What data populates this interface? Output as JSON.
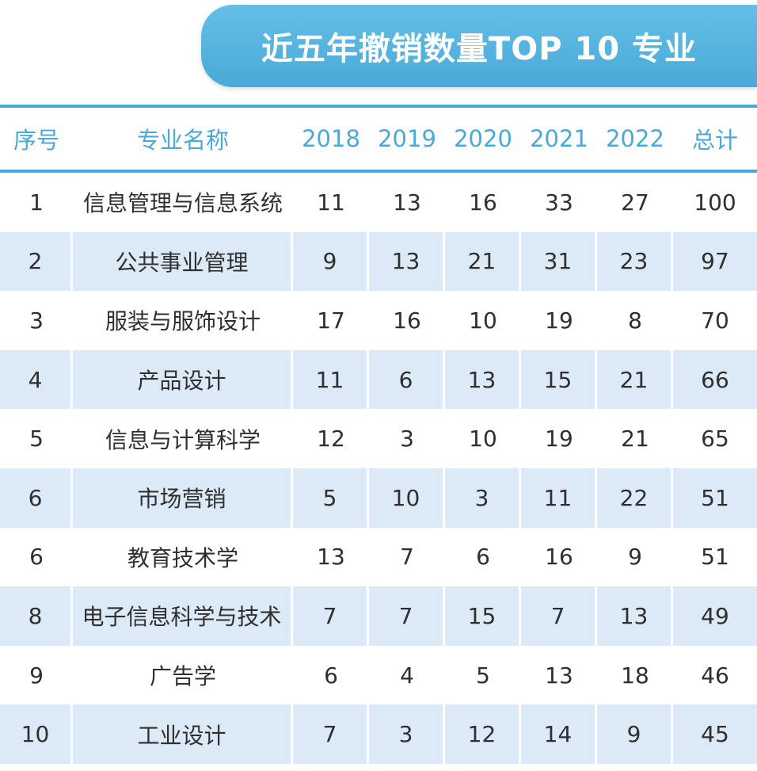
{
  "title": "近五年撤销数量TOP 10 专业",
  "colors": {
    "banner": "#4aa9d8",
    "header_text": "#4aa9d8",
    "row_shade": "#dce9f6"
  },
  "chart_data": {
    "type": "table",
    "title": "近五年撤销数量TOP 10 专业",
    "columns": [
      "序号",
      "专业名称",
      "2018",
      "2019",
      "2020",
      "2021",
      "2022",
      "总计"
    ],
    "rows": [
      [
        "1",
        "信息管理与信息系统",
        "11",
        "13",
        "16",
        "33",
        "27",
        "100"
      ],
      [
        "2",
        "公共事业管理",
        "9",
        "13",
        "21",
        "31",
        "23",
        "97"
      ],
      [
        "3",
        "服装与服饰设计",
        "17",
        "16",
        "10",
        "19",
        "8",
        "70"
      ],
      [
        "4",
        "产品设计",
        "11",
        "6",
        "13",
        "15",
        "21",
        "66"
      ],
      [
        "5",
        "信息与计算科学",
        "12",
        "3",
        "10",
        "19",
        "21",
        "65"
      ],
      [
        "6",
        "市场营销",
        "5",
        "10",
        "3",
        "11",
        "22",
        "51"
      ],
      [
        "6",
        "教育技术学",
        "13",
        "7",
        "6",
        "16",
        "9",
        "51"
      ],
      [
        "8",
        "电子信息科学与技术",
        "7",
        "7",
        "15",
        "7",
        "13",
        "49"
      ],
      [
        "9",
        "广告学",
        "6",
        "4",
        "5",
        "13",
        "18",
        "46"
      ],
      [
        "10",
        "工业设计",
        "7",
        "3",
        "12",
        "14",
        "9",
        "45"
      ]
    ]
  }
}
